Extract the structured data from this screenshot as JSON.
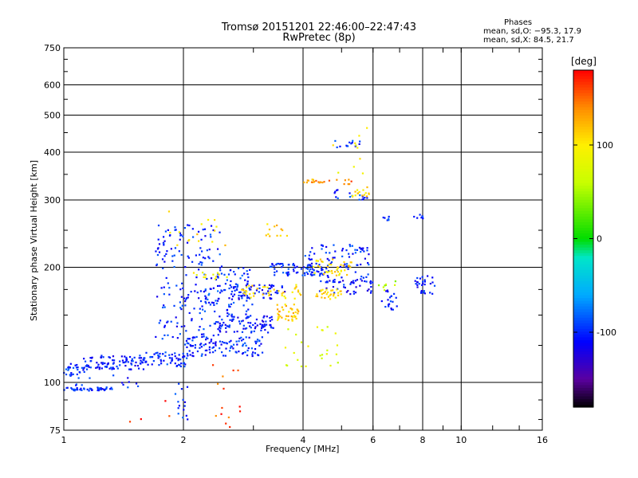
{
  "chart_data": {
    "type": "scatter",
    "title": "Tromsø 20151201 22:46:00–22:47:43",
    "subtitle": "RwPretec (8p)",
    "xlabel": "Frequency [MHz]",
    "ylabel": "Stationary phase Virtual Height [km]",
    "x_scale": "log",
    "y_scale": "log",
    "xlim": [
      1,
      16
    ],
    "ylim": [
      75,
      750
    ],
    "x_ticks": [
      1,
      2,
      4,
      6,
      8,
      10,
      16
    ],
    "y_ticks": [
      75,
      100,
      200,
      300,
      400,
      500,
      600,
      750
    ],
    "grid": true,
    "phase_stats": {
      "heading": "Phases",
      "line_o": "mean, sd,O: −95.3, 17.9",
      "line_x": "mean, sd,X:  84.5, 21.7"
    },
    "colorbar": {
      "label": "[deg]",
      "ticks": [
        100,
        0,
        -100
      ],
      "range": [
        -180,
        180
      ]
    },
    "series": [
      {
        "clusters": [
          {
            "f": [
              1.0,
              1.28
            ],
            "h": [
              95,
              97
            ],
            "phase": -100,
            "n": 40
          },
          {
            "f": [
              1.0,
              1.12
            ],
            "h": [
              104,
              112
            ],
            "phase": -100,
            "n": 22
          },
          {
            "f": [
              1.12,
              1.6
            ],
            "h": [
              108,
              118
            ],
            "phase": -105,
            "n": 90
          },
          {
            "f": [
              1.6,
              2.05
            ],
            "h": [
              110,
              120
            ],
            "phase": -100,
            "n": 60
          },
          {
            "f": [
              2.0,
              3.2
            ],
            "h": [
              117,
              132
            ],
            "phase": -100,
            "n": 110
          },
          {
            "f": [
              2.4,
              3.4
            ],
            "h": [
              135,
              150
            ],
            "phase": -105,
            "n": 90
          },
          {
            "f": [
              1.7,
              2.5
            ],
            "h": [
              130,
              260
            ],
            "phase": -100,
            "n": 180
          },
          {
            "f": [
              2.2,
              3.0
            ],
            "h": [
              150,
              200
            ],
            "phase": -95,
            "n": 80
          },
          {
            "f": [
              2.6,
              3.6
            ],
            "h": [
              165,
              180
            ],
            "phase": -110,
            "n": 60
          },
          {
            "f": [
              3.3,
              4.5
            ],
            "h": [
              190,
              205
            ],
            "phase": -100,
            "n": 70
          },
          {
            "f": [
              4.0,
              5.9
            ],
            "h": [
              180,
              230
            ],
            "phase": -100,
            "n": 90
          },
          {
            "f": [
              4.4,
              6.0
            ],
            "h": [
              170,
              185
            ],
            "phase": -110,
            "n": 40
          },
          {
            "f": [
              6.3,
              6.9
            ],
            "h": [
              155,
              175
            ],
            "phase": -100,
            "n": 20
          },
          {
            "f": [
              7.6,
              8.6
            ],
            "h": [
              170,
              190
            ],
            "phase": -105,
            "n": 30
          },
          {
            "f": [
              7.6,
              8.1
            ],
            "h": [
              268,
              275
            ],
            "phase": -100,
            "n": 8
          },
          {
            "f": [
              6.2,
              6.7
            ],
            "h": [
              262,
              272
            ],
            "phase": -100,
            "n": 6
          },
          {
            "f": [
              4.8,
              5.6
            ],
            "h": [
              410,
              430
            ],
            "phase": -95,
            "n": 14
          },
          {
            "f": [
              4.8,
              5.8
            ],
            "h": [
              300,
              320
            ],
            "phase": -95,
            "n": 16
          },
          {
            "f": [
              1.0,
              1.6
            ],
            "h": [
              94,
              112
            ],
            "phase": -100,
            "n": 30
          },
          {
            "f": [
              1.9,
              2.15
            ],
            "h": [
              80,
              100
            ],
            "phase": -100,
            "n": 15
          }
        ]
      },
      {
        "clusters": [
          {
            "f": [
              2.8,
              4.0
            ],
            "h": [
              165,
              180
            ],
            "phase": 105,
            "n": 40
          },
          {
            "f": [
              3.4,
              3.9
            ],
            "h": [
              145,
              160
            ],
            "phase": 115,
            "n": 40
          },
          {
            "f": [
              4.2,
              5.3
            ],
            "h": [
              190,
              210
            ],
            "phase": 105,
            "n": 40
          },
          {
            "f": [
              4.3,
              5.0
            ],
            "h": [
              165,
              175
            ],
            "phase": 110,
            "n": 30
          },
          {
            "f": [
              4.0,
              4.5
            ],
            "h": [
              333,
              340
            ],
            "phase": 130,
            "n": 14
          },
          {
            "f": [
              5.3,
              5.9
            ],
            "h": [
              305,
              325
            ],
            "phase": 105,
            "n": 16
          },
          {
            "f": [
              2.1,
              2.6
            ],
            "h": [
              185,
              195
            ],
            "phase": 95,
            "n": 12
          },
          {
            "f": [
              1.8,
              2.6
            ],
            "h": [
              220,
              290
            ],
            "phase": 110,
            "n": 15
          },
          {
            "f": [
              3.2,
              3.7
            ],
            "h": [
              240,
              260
            ],
            "phase": 115,
            "n": 12
          },
          {
            "f": [
              3.6,
              4.9
            ],
            "h": [
              110,
              140
            ],
            "phase": 75,
            "n": 25
          },
          {
            "f": [
              4.6,
              6.0
            ],
            "h": [
              350,
              470
            ],
            "phase": 95,
            "n": 10
          },
          {
            "f": [
              6.2,
              7.0
            ],
            "h": [
              170,
              185
            ],
            "phase": 55,
            "n": 8
          }
        ]
      },
      {
        "clusters": [
          {
            "f": [
              2.3,
              2.8
            ],
            "h": [
              75,
              95
            ],
            "phase": 160,
            "n": 8
          },
          {
            "f": [
              1.4,
              2.0
            ],
            "h": [
              78,
              92
            ],
            "phase": 175,
            "n": 4
          },
          {
            "f": [
              2.3,
              2.8
            ],
            "h": [
              95,
              115
            ],
            "phase": 150,
            "n": 6
          },
          {
            "f": [
              4.3,
              5.3
            ],
            "h": [
              330,
              340
            ],
            "phase": 150,
            "n": 10
          }
        ]
      }
    ]
  }
}
